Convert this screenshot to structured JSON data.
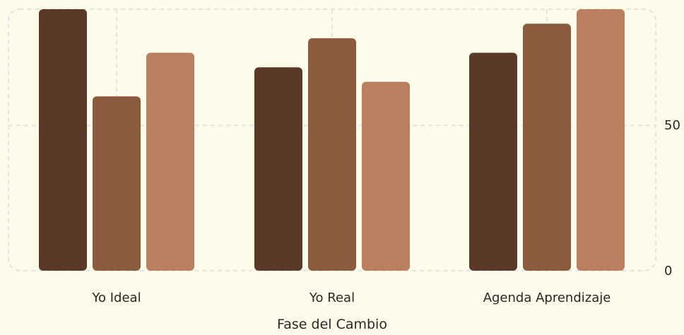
{
  "chart_data": {
    "type": "bar",
    "title": "",
    "xlabel": "Fase del Cambio",
    "ylabel": "",
    "categories": [
      "Yo Ideal",
      "Yo Real",
      "Agenda Aprendizaje"
    ],
    "series": [
      {
        "values": [
          90,
          70,
          75
        ]
      },
      {
        "values": [
          60,
          80,
          85
        ]
      },
      {
        "values": [
          75,
          65,
          90
        ]
      }
    ],
    "y_ticks": [
      "0",
      "50"
    ],
    "ylim": [
      0,
      90
    ],
    "y_axis_position": "right",
    "grid": true,
    "legend": "none",
    "colors": [
      "#5a3928",
      "#8b5b3e",
      "#b97f5f"
    ],
    "background": "#fdfbe9",
    "grid_color": "#dcdcdc"
  }
}
